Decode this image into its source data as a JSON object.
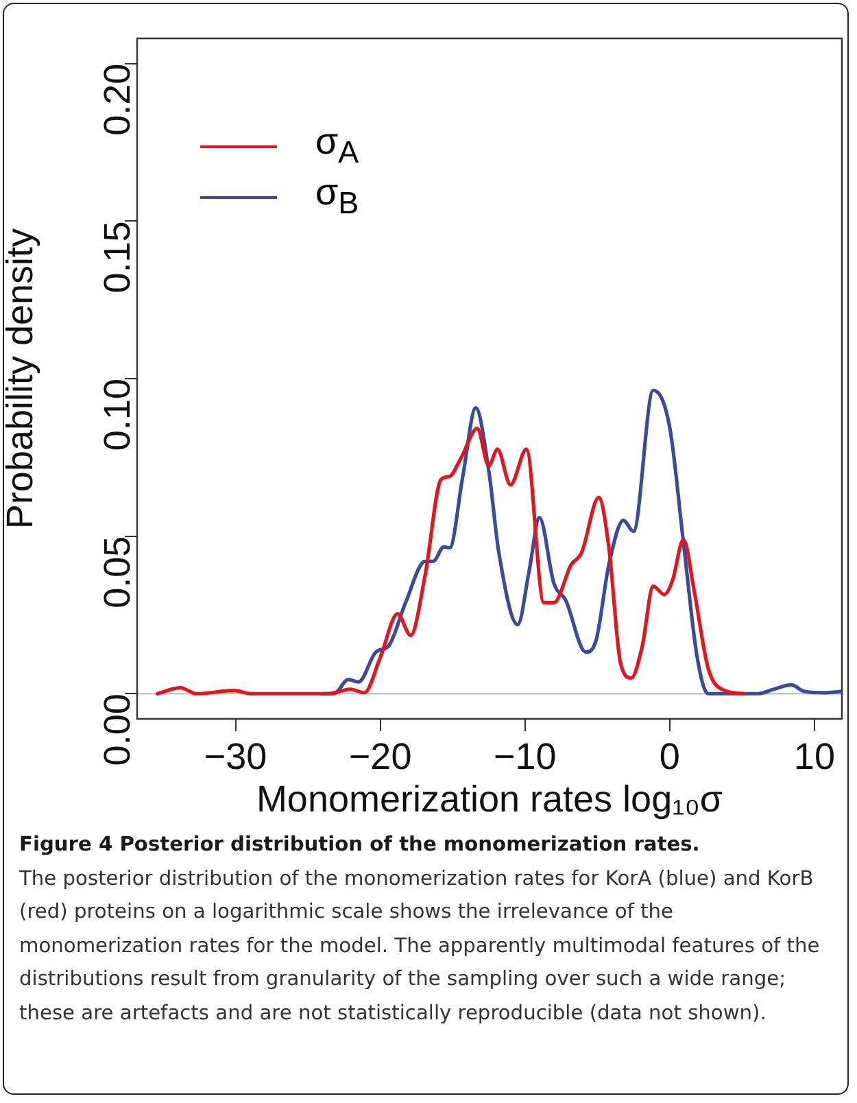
{
  "chart_data": {
    "type": "line",
    "xlabel": "Monomerization rates log₁₀σ",
    "ylabel": "Probability density",
    "xlim": [
      -36.8,
      11.9
    ],
    "ylim": [
      -0.008,
      0.208
    ],
    "xticks": [
      {
        "value": -30,
        "label": "−30"
      },
      {
        "value": -20,
        "label": "−20"
      },
      {
        "value": -10,
        "label": "−10"
      },
      0,
      10
    ],
    "yticks": [
      {
        "value": 0,
        "label": "0.00"
      },
      {
        "value": 0.05,
        "label": "0.05"
      },
      {
        "value": 0.1,
        "label": "0.10"
      },
      {
        "value": 0.15,
        "label": "0.15"
      },
      {
        "value": 0.2,
        "label": "0.20"
      }
    ],
    "grid": false,
    "legend": "top left",
    "marker": "none",
    "line_style": "solid",
    "ref_lines": [
      {
        "axis": "y",
        "value": 0,
        "color": "#c8c8c8"
      }
    ],
    "series": [
      {
        "name": "σ$_{A}$",
        "color": "#e8141c",
        "x": [
          -35.4,
          -33.8,
          -32.7,
          -30.1,
          -28.9,
          -23.6,
          -22.05,
          -21.1,
          -20.0,
          -18.8,
          -17.9,
          -16.9,
          -15.8,
          -15.2,
          -14.4,
          -13.3,
          -12.5,
          -11.9,
          -11.0,
          -9.9,
          -8.7,
          -8.0,
          -6.8,
          -6.1,
          -4.9,
          -4.2,
          -3.4,
          -2.66,
          -1.9,
          -1.14,
          -0.38,
          0.19,
          0.95,
          1.7,
          2.66,
          3.8,
          5.1
        ],
        "values": [
          0,
          0.0019,
          0,
          0.001,
          0,
          0,
          0.0014,
          0.0003,
          0.0115,
          0.0254,
          0.0185,
          0.0376,
          0.068,
          0.069,
          0.075,
          0.0842,
          0.0724,
          0.0776,
          0.0663,
          0.0776,
          0.0289,
          0.0289,
          0.041,
          0.0446,
          0.0623,
          0.0463,
          0.0097,
          0.005,
          0.015,
          0.0341,
          0.0315,
          0.0359,
          0.0489,
          0.0324,
          0.008,
          0.001,
          0
        ]
      },
      {
        "name": "σ$_{B}$",
        "color": "#3a4a9c",
        "x": [
          -24.0,
          -23.2,
          -22.2,
          -21.5,
          -20.3,
          -19.4,
          -18.25,
          -16.9,
          -16.35,
          -15.6,
          -15.2,
          -14.3,
          -13.4,
          -12.5,
          -11.8,
          -10.5,
          -9.7,
          -9.0,
          -8.0,
          -7.2,
          -5.8,
          -5.1,
          -4.2,
          -3.2,
          -2.5,
          -1.14,
          0,
          0.95,
          1.9,
          2.66,
          6.1,
          7.2,
          8.4,
          9.3,
          10.6,
          11.9
        ],
        "values": [
          0,
          0,
          0.0045,
          0.0037,
          0.0132,
          0.0153,
          0.0289,
          0.042,
          0.042,
          0.0466,
          0.0463,
          0.0689,
          0.0907,
          0.0707,
          0.0446,
          0.0219,
          0.0393,
          0.0559,
          0.035,
          0.0298,
          0.0132,
          0.0167,
          0.041,
          0.055,
          0.0515,
          0.0963,
          0.0846,
          0.048,
          0.0115,
          0,
          0,
          0.0014,
          0.0028,
          0.0007,
          0.0003,
          0.0007
        ]
      }
    ],
    "annotations": [
      "Figure 4 Posterior distribution of the monomerization rates.",
      "The posterior distribution of the monomerization rates for KorA (blue) and KorB (red) proteins on a logarithmic scale shows the irrelevance of the monomerization rates for the model. The apparently multimodal features of the distributions result from granularity of the sampling over such a wide range; these are artefacts and are not statistically reproducible (data not shown)."
    ]
  }
}
